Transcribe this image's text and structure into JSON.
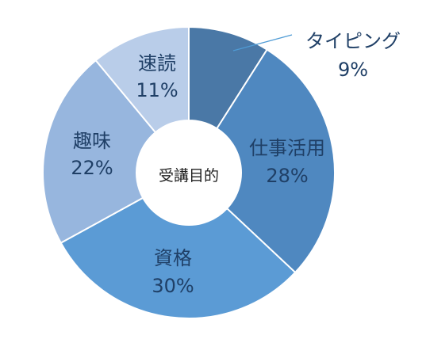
{
  "chart_data": {
    "type": "pie",
    "donut": true,
    "center_label": "受講目的",
    "legend": "none",
    "slices": [
      {
        "name": "タイピング",
        "value": 9,
        "label": "9%",
        "color": "#4a78a6"
      },
      {
        "name": "仕事活用",
        "value": 28,
        "label": "28%",
        "color": "#4f88c0"
      },
      {
        "name": "資格",
        "value": 30,
        "label": "30%",
        "color": "#5b9bd5"
      },
      {
        "name": "趣味",
        "value": 22,
        "label": "22%",
        "color": "#97b6de"
      },
      {
        "name": "速読",
        "value": 11,
        "label": "11%",
        "color": "#b9cde9"
      }
    ]
  }
}
